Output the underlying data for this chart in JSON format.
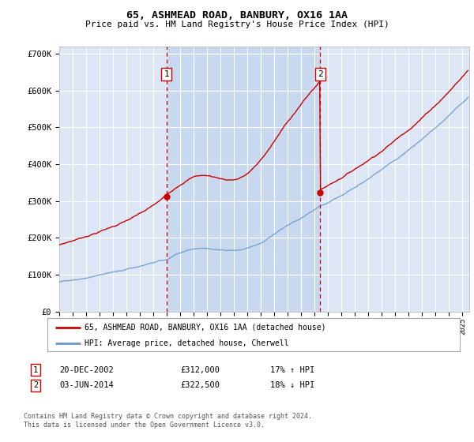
{
  "title1": "65, ASHMEAD ROAD, BANBURY, OX16 1AA",
  "title2": "Price paid vs. HM Land Registry's House Price Index (HPI)",
  "ylim": [
    0,
    720000
  ],
  "yticks": [
    0,
    100000,
    200000,
    300000,
    400000,
    500000,
    600000,
    700000
  ],
  "ytick_labels": [
    "£0",
    "£100K",
    "£200K",
    "£300K",
    "£400K",
    "£500K",
    "£600K",
    "£700K"
  ],
  "background_color": "#ffffff",
  "plot_bg_color": "#dde6f5",
  "shade_color": "#c8d8ee",
  "grid_color": "#ffffff",
  "hpi_line_color": "#6699cc",
  "price_line_color": "#cc0000",
  "vline_color": "#cc0000",
  "sale1_x": 2002.97,
  "sale1_y": 312000,
  "sale2_x": 2014.42,
  "sale2_y": 322500,
  "legend_label1": "65, ASHMEAD ROAD, BANBURY, OX16 1AA (detached house)",
  "legend_label2": "HPI: Average price, detached house, Cherwell",
  "table_rows": [
    {
      "num": "1",
      "date": "20-DEC-2002",
      "price": "£312,000",
      "hpi": "17% ↑ HPI"
    },
    {
      "num": "2",
      "date": "03-JUN-2014",
      "price": "£322,500",
      "hpi": "18% ↓ HPI"
    }
  ],
  "footer": "Contains HM Land Registry data © Crown copyright and database right 2024.\nThis data is licensed under the Open Government Licence v3.0.",
  "xmin": 1995,
  "xmax": 2025.5
}
